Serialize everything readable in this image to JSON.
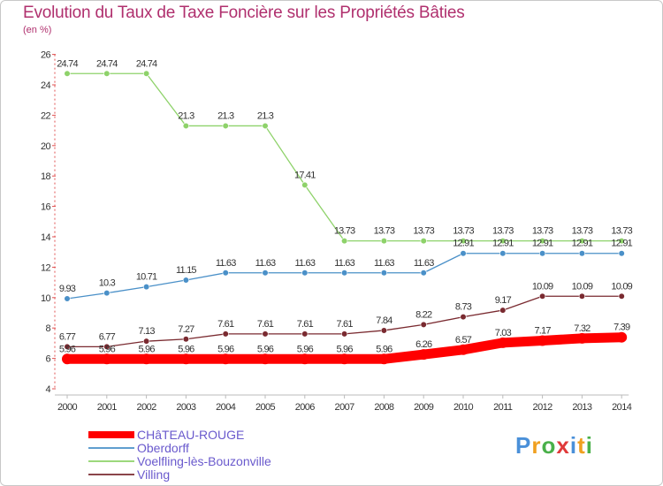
{
  "title": "Evolution du Taux de Taxe Foncière sur les Propriétés Bâties",
  "subtitle": "(en %)",
  "logo": {
    "text": "Proxiti",
    "letter_colors": [
      "#4a90d9",
      "#f0a020",
      "#4ab04a",
      "#e03a3a",
      "#4a90d9",
      "#f0a020",
      "#4ab04a"
    ]
  },
  "chart_data": {
    "type": "line",
    "x": [
      2000,
      2001,
      2002,
      2003,
      2004,
      2005,
      2006,
      2007,
      2008,
      2009,
      2010,
      2011,
      2012,
      2013,
      2014
    ],
    "ylim": [
      4,
      26
    ],
    "yticks": [
      4,
      6,
      8,
      10,
      12,
      14,
      16,
      18,
      20,
      22,
      24,
      26
    ],
    "grid": false,
    "legend_position": "bottom-left",
    "series": [
      {
        "name": "CHâTEAU-ROUGE",
        "color": "#ff0000",
        "width": 11,
        "values": [
          5.96,
          5.96,
          5.96,
          5.96,
          5.96,
          5.96,
          5.96,
          5.96,
          5.96,
          6.26,
          6.57,
          7.03,
          7.17,
          7.32,
          7.39
        ],
        "labels": [
          "5.96",
          "5.96",
          "5.96",
          "5.96",
          "5.96",
          "5.96",
          "5.96",
          "5.96",
          "5.96",
          "6.26",
          "6.57",
          "7.03",
          "7.17",
          "7.32",
          "7.39"
        ]
      },
      {
        "name": "Oberdorff",
        "color": "#4a90c8",
        "width": 1.3,
        "values": [
          9.93,
          10.3,
          10.71,
          11.15,
          11.63,
          11.63,
          11.63,
          11.63,
          11.63,
          11.63,
          12.91,
          12.91,
          12.91,
          12.91,
          12.91
        ],
        "labels": [
          "9.93",
          "10.3",
          "10.71",
          "11.15",
          "11.63",
          "11.63",
          "11.63",
          "11.63",
          "11.63",
          "11.63",
          "12.91",
          "12.91",
          "12.91",
          "12.91",
          "12.91"
        ]
      },
      {
        "name": "Voelfling-lès-Bouzonville",
        "color": "#8ed26a",
        "width": 1.3,
        "values": [
          24.74,
          24.74,
          24.74,
          21.3,
          21.3,
          21.3,
          17.41,
          13.73,
          13.73,
          13.73,
          13.73,
          13.73,
          13.73,
          13.73,
          13.73
        ],
        "labels": [
          "24.74",
          "24.74",
          "24.74",
          "21.3",
          "21.3",
          "21.3",
          "17.41",
          "13.73",
          "13.73",
          "13.73",
          "13.73",
          "13.73",
          "13.73",
          "13.73",
          "13.73"
        ]
      },
      {
        "name": "Villing",
        "color": "#7a2a30",
        "width": 1.3,
        "values": [
          6.77,
          6.77,
          7.13,
          7.27,
          7.61,
          7.61,
          7.61,
          7.61,
          7.84,
          8.22,
          8.73,
          9.17,
          10.09,
          10.09,
          10.09
        ],
        "labels": [
          "6.77",
          "6.77",
          "7.13",
          "7.27",
          "7.61",
          "7.61",
          "7.61",
          "7.61",
          "7.84",
          "8.22",
          "8.73",
          "9.17",
          "10.09",
          "10.09",
          "10.09"
        ]
      }
    ]
  }
}
